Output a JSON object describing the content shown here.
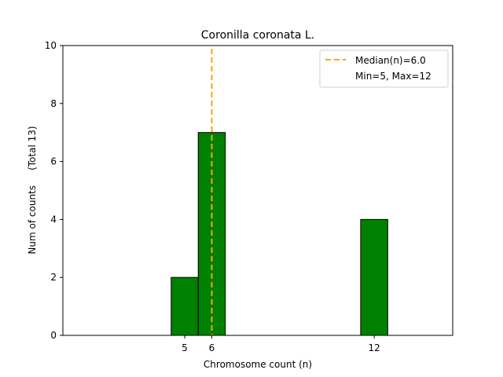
{
  "chart_data": {
    "type": "bar",
    "title": "Coronilla coronata L.",
    "xlabel": "Chromosome count (n)",
    "ylabel": "Num of counts     (Total 13)",
    "bars": [
      {
        "x": 5,
        "value": 2
      },
      {
        "x": 6,
        "value": 7
      },
      {
        "x": 12,
        "value": 4
      }
    ],
    "bar_width": 1,
    "xlim": [
      0.5,
      14.9
    ],
    "ylim": [
      0,
      10
    ],
    "xticks": [
      5,
      6,
      12
    ],
    "yticks": [
      0,
      2,
      4,
      6,
      8,
      10
    ],
    "median": 6.0,
    "grid": false,
    "legend": {
      "position": "top-right",
      "entries": [
        "Median(n)=6.0",
        "Min=5, Max=12"
      ]
    },
    "colors": {
      "bar_fill": "#008000",
      "bar_edge": "#000000",
      "median_line": "#FFA500"
    }
  }
}
